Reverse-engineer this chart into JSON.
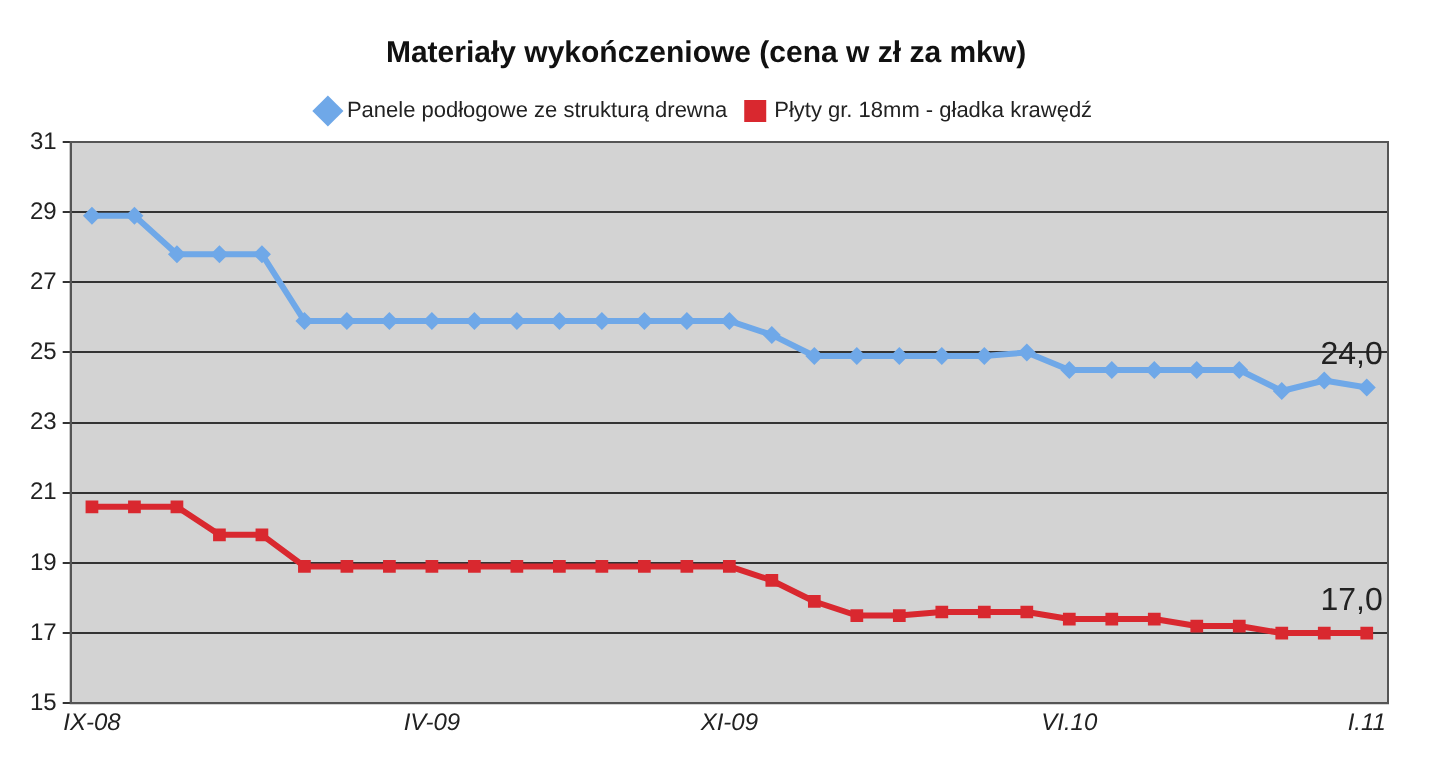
{
  "chart_data": {
    "type": "line",
    "title": "Materiały wykończeniowe (cena w zł za mkw)",
    "categories": [
      "IX-08",
      null,
      null,
      null,
      null,
      null,
      null,
      null,
      "IV-09",
      null,
      null,
      null,
      null,
      null,
      null,
      "XI-09",
      null,
      null,
      null,
      null,
      null,
      null,
      null,
      "VI.10",
      null,
      null,
      null,
      null,
      null,
      null,
      "I.11"
    ],
    "series": [
      {
        "name": "Panele podłogowe ze strukturą drewna",
        "color": "#6fa8e8",
        "marker": "diamond",
        "values": [
          28.9,
          28.9,
          27.8,
          27.8,
          27.8,
          25.9,
          25.9,
          25.9,
          25.9,
          25.9,
          25.9,
          25.9,
          25.9,
          25.9,
          25.9,
          25.9,
          25.5,
          24.9,
          24.9,
          24.9,
          24.9,
          24.9,
          25.0,
          24.5,
          24.5,
          24.5,
          24.5,
          24.5,
          23.9,
          24.2,
          24.0
        ],
        "value_labels": [
          null,
          null,
          null,
          null,
          null,
          null,
          null,
          null,
          null,
          null,
          null,
          null,
          null,
          null,
          null,
          null,
          null,
          null,
          null,
          null,
          null,
          null,
          null,
          null,
          null,
          null,
          null,
          null,
          null,
          null,
          "24,0"
        ]
      },
      {
        "name": "Płyty gr. 18mm - gładka krawędź",
        "color": "#d9282f",
        "marker": "square",
        "values": [
          20.6,
          20.6,
          20.6,
          19.8,
          19.8,
          18.9,
          18.9,
          18.9,
          18.9,
          18.9,
          18.9,
          18.9,
          18.9,
          18.9,
          18.9,
          18.9,
          18.5,
          17.9,
          17.5,
          17.5,
          17.6,
          17.6,
          17.6,
          17.4,
          17.4,
          17.4,
          17.2,
          17.2,
          17.0,
          17.0,
          17.0
        ],
        "value_labels": [
          null,
          null,
          null,
          null,
          null,
          null,
          null,
          null,
          null,
          null,
          null,
          null,
          null,
          null,
          null,
          null,
          null,
          null,
          null,
          null,
          null,
          null,
          null,
          null,
          null,
          null,
          null,
          null,
          null,
          null,
          "17,0"
        ]
      }
    ],
    "ylim": [
      15,
      31
    ],
    "yticks": [
      15,
      17,
      19,
      21,
      23,
      25,
      27,
      29,
      31
    ],
    "grid": "y",
    "legend": "top",
    "line_style": "solid"
  }
}
